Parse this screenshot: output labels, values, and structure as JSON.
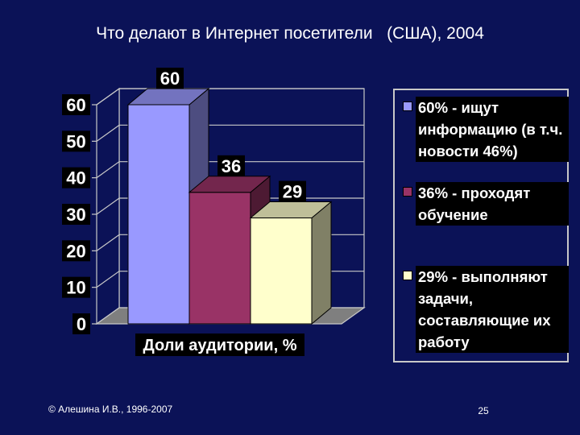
{
  "title": "Что делают в Интернет посетители   (США), 2004",
  "chart_data": {
    "type": "bar",
    "categories": [
      "60%",
      "36%",
      "29%"
    ],
    "values": [
      60,
      36,
      29
    ],
    "data_labels": [
      "60",
      "36",
      "29"
    ],
    "xlabel": "Доли аудитории, %",
    "ylabel": "",
    "ylim": [
      0,
      60
    ],
    "yticks": [
      "0",
      "10",
      "20",
      "30",
      "40",
      "50",
      "60"
    ],
    "grid": true,
    "three_d": true,
    "colors": [
      "#9999ff",
      "#993366",
      "#ffffcc"
    ],
    "legend_position": "right",
    "legend": [
      "60% - ищут информацию (в т.ч. новости 46%)",
      "36% - проходят обучение",
      "29% - выполняют задачи, составляющие их работу"
    ]
  },
  "footer": {
    "copyright": "© Алешина И.В., 1996-2007",
    "page_number": "25"
  }
}
